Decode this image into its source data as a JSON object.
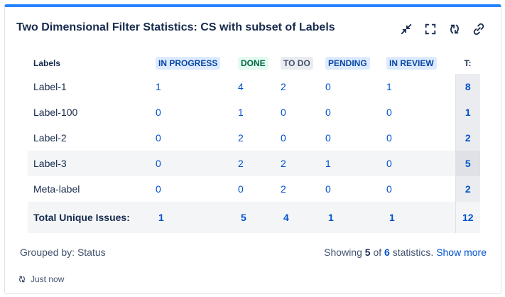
{
  "gadget": {
    "title": "Two Dimensional Filter Statistics: CS with subset of Labels",
    "actions": [
      "minimize-icon",
      "fullscreen-icon",
      "refresh-icon",
      "link-icon"
    ]
  },
  "table": {
    "row_header": "Labels",
    "columns": [
      {
        "label": "IN PROGRESS",
        "bg": "#deebff",
        "fg": "#0747a6"
      },
      {
        "label": "DONE",
        "bg": "#e3fcef",
        "fg": "#006644"
      },
      {
        "label": "TO DO",
        "bg": "#ebecf0",
        "fg": "#42526e"
      },
      {
        "label": "PENDING",
        "bg": "#deebff",
        "fg": "#0747a6"
      },
      {
        "label": "IN REVIEW",
        "bg": "#deebff",
        "fg": "#0747a6"
      }
    ],
    "total_header": "T:",
    "rows": [
      {
        "label": "Label-1",
        "values": [
          "1",
          "4",
          "2",
          "0",
          "1"
        ],
        "total": "8"
      },
      {
        "label": "Label-100",
        "values": [
          "0",
          "1",
          "0",
          "0",
          "0"
        ],
        "total": "1"
      },
      {
        "label": "Label-2",
        "values": [
          "0",
          "2",
          "0",
          "0",
          "0"
        ],
        "total": "2"
      },
      {
        "label": "Label-3",
        "values": [
          "0",
          "2",
          "2",
          "1",
          "0"
        ],
        "total": "5"
      },
      {
        "label": "Meta-label",
        "values": [
          "0",
          "0",
          "2",
          "0",
          "0"
        ],
        "total": "2"
      }
    ],
    "total_row": {
      "label": "Total Unique Issues:",
      "values": [
        "1",
        "5",
        "4",
        "1",
        "1"
      ],
      "total": "12"
    }
  },
  "footer": {
    "grouped_by": "Grouped by: Status",
    "showing_prefix": "Showing",
    "shown": "5",
    "of_word": "of",
    "total": "6",
    "statistics_suffix": "statistics.",
    "show_more": "Show more",
    "refreshed": "Just now"
  }
}
